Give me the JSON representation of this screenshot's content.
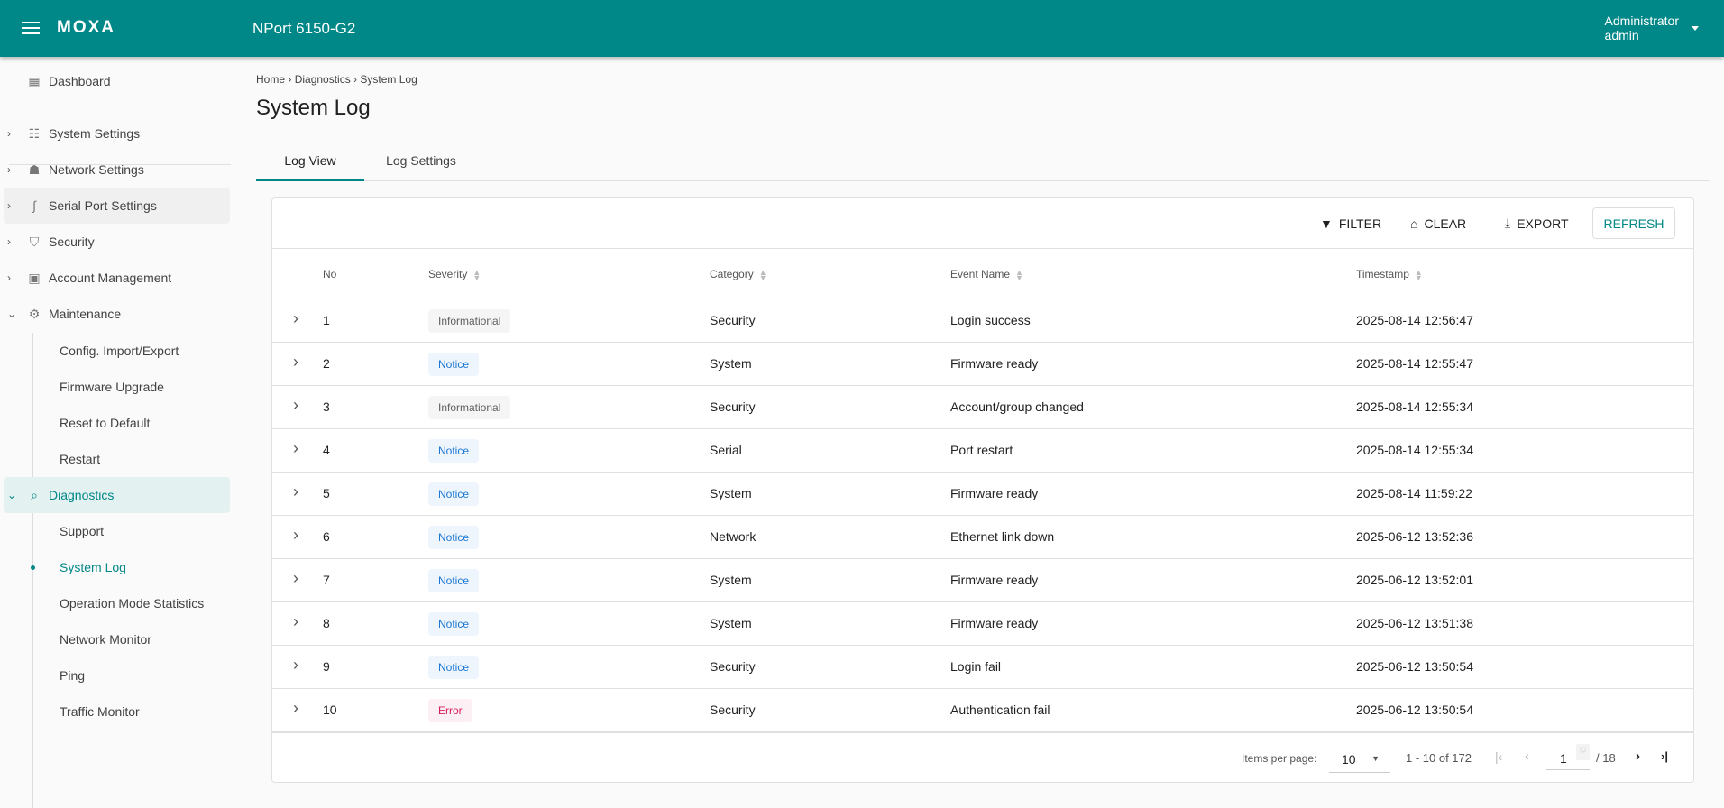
{
  "header": {
    "brand": "MOXA",
    "device": "NPort 6150-G2",
    "user_role": "Administrator",
    "user_name": "admin"
  },
  "colors": {
    "primary": "#008787",
    "notice_text": "#1976d2",
    "notice_bg": "#eef5fd",
    "info_text": "#616161",
    "info_bg": "#f5f5f5",
    "error_text": "#d81b60",
    "error_bg": "#fdf0f4"
  },
  "sidebar": {
    "dashboard": "Dashboard",
    "items": [
      {
        "label": "System Settings",
        "icon": "sliders-icon"
      },
      {
        "label": "Network Settings",
        "icon": "network-icon"
      },
      {
        "label": "Serial Port Settings",
        "icon": "serial-port-icon"
      },
      {
        "label": "Security",
        "icon": "shield-icon"
      },
      {
        "label": "Account Management",
        "icon": "account-icon"
      },
      {
        "label": "Maintenance",
        "icon": "maintenance-icon"
      }
    ],
    "maintenance_sub": [
      "Config. Import/Export",
      "Firmware Upgrade",
      "Reset to Default",
      "Restart"
    ],
    "diagnostics": "Diagnostics",
    "diagnostics_sub": [
      "Support",
      "System Log",
      "Operation Mode Statistics",
      "Network Monitor",
      "Ping",
      "Traffic Monitor"
    ]
  },
  "breadcrumb": [
    "Home",
    "Diagnostics",
    "System Log"
  ],
  "page_title": "System Log",
  "tabs": [
    "Log View",
    "Log Settings"
  ],
  "toolbar": {
    "filter": "FILTER",
    "clear": "CLEAR",
    "export": "EXPORT",
    "refresh": "REFRESH"
  },
  "columns": [
    "No",
    "Severity",
    "Category",
    "Event Name",
    "Timestamp"
  ],
  "rows": [
    {
      "no": "1",
      "severity": "Informational",
      "category": "Security",
      "event": "Login success",
      "timestamp": "2025-08-14 12:56:47"
    },
    {
      "no": "2",
      "severity": "Notice",
      "category": "System",
      "event": "Firmware ready",
      "timestamp": "2025-08-14 12:55:47"
    },
    {
      "no": "3",
      "severity": "Informational",
      "category": "Security",
      "event": "Account/group changed",
      "timestamp": "2025-08-14 12:55:34"
    },
    {
      "no": "4",
      "severity": "Notice",
      "category": "Serial",
      "event": "Port restart",
      "timestamp": "2025-08-14 12:55:34"
    },
    {
      "no": "5",
      "severity": "Notice",
      "category": "System",
      "event": "Firmware ready",
      "timestamp": "2025-08-14 11:59:22"
    },
    {
      "no": "6",
      "severity": "Notice",
      "category": "Network",
      "event": "Ethernet link down",
      "timestamp": "2025-06-12 13:52:36"
    },
    {
      "no": "7",
      "severity": "Notice",
      "category": "System",
      "event": "Firmware ready",
      "timestamp": "2025-06-12 13:52:01"
    },
    {
      "no": "8",
      "severity": "Notice",
      "category": "System",
      "event": "Firmware ready",
      "timestamp": "2025-06-12 13:51:38"
    },
    {
      "no": "9",
      "severity": "Notice",
      "category": "Security",
      "event": "Login fail",
      "timestamp": "2025-06-12 13:50:54"
    },
    {
      "no": "10",
      "severity": "Error",
      "category": "Security",
      "event": "Authentication fail",
      "timestamp": "2025-06-12 13:50:54"
    }
  ],
  "pagination": {
    "items_label": "Items per page:",
    "items_per_page": "10",
    "range": "1 - 10 of 172",
    "page": "1",
    "total_pages": "/ 18"
  }
}
